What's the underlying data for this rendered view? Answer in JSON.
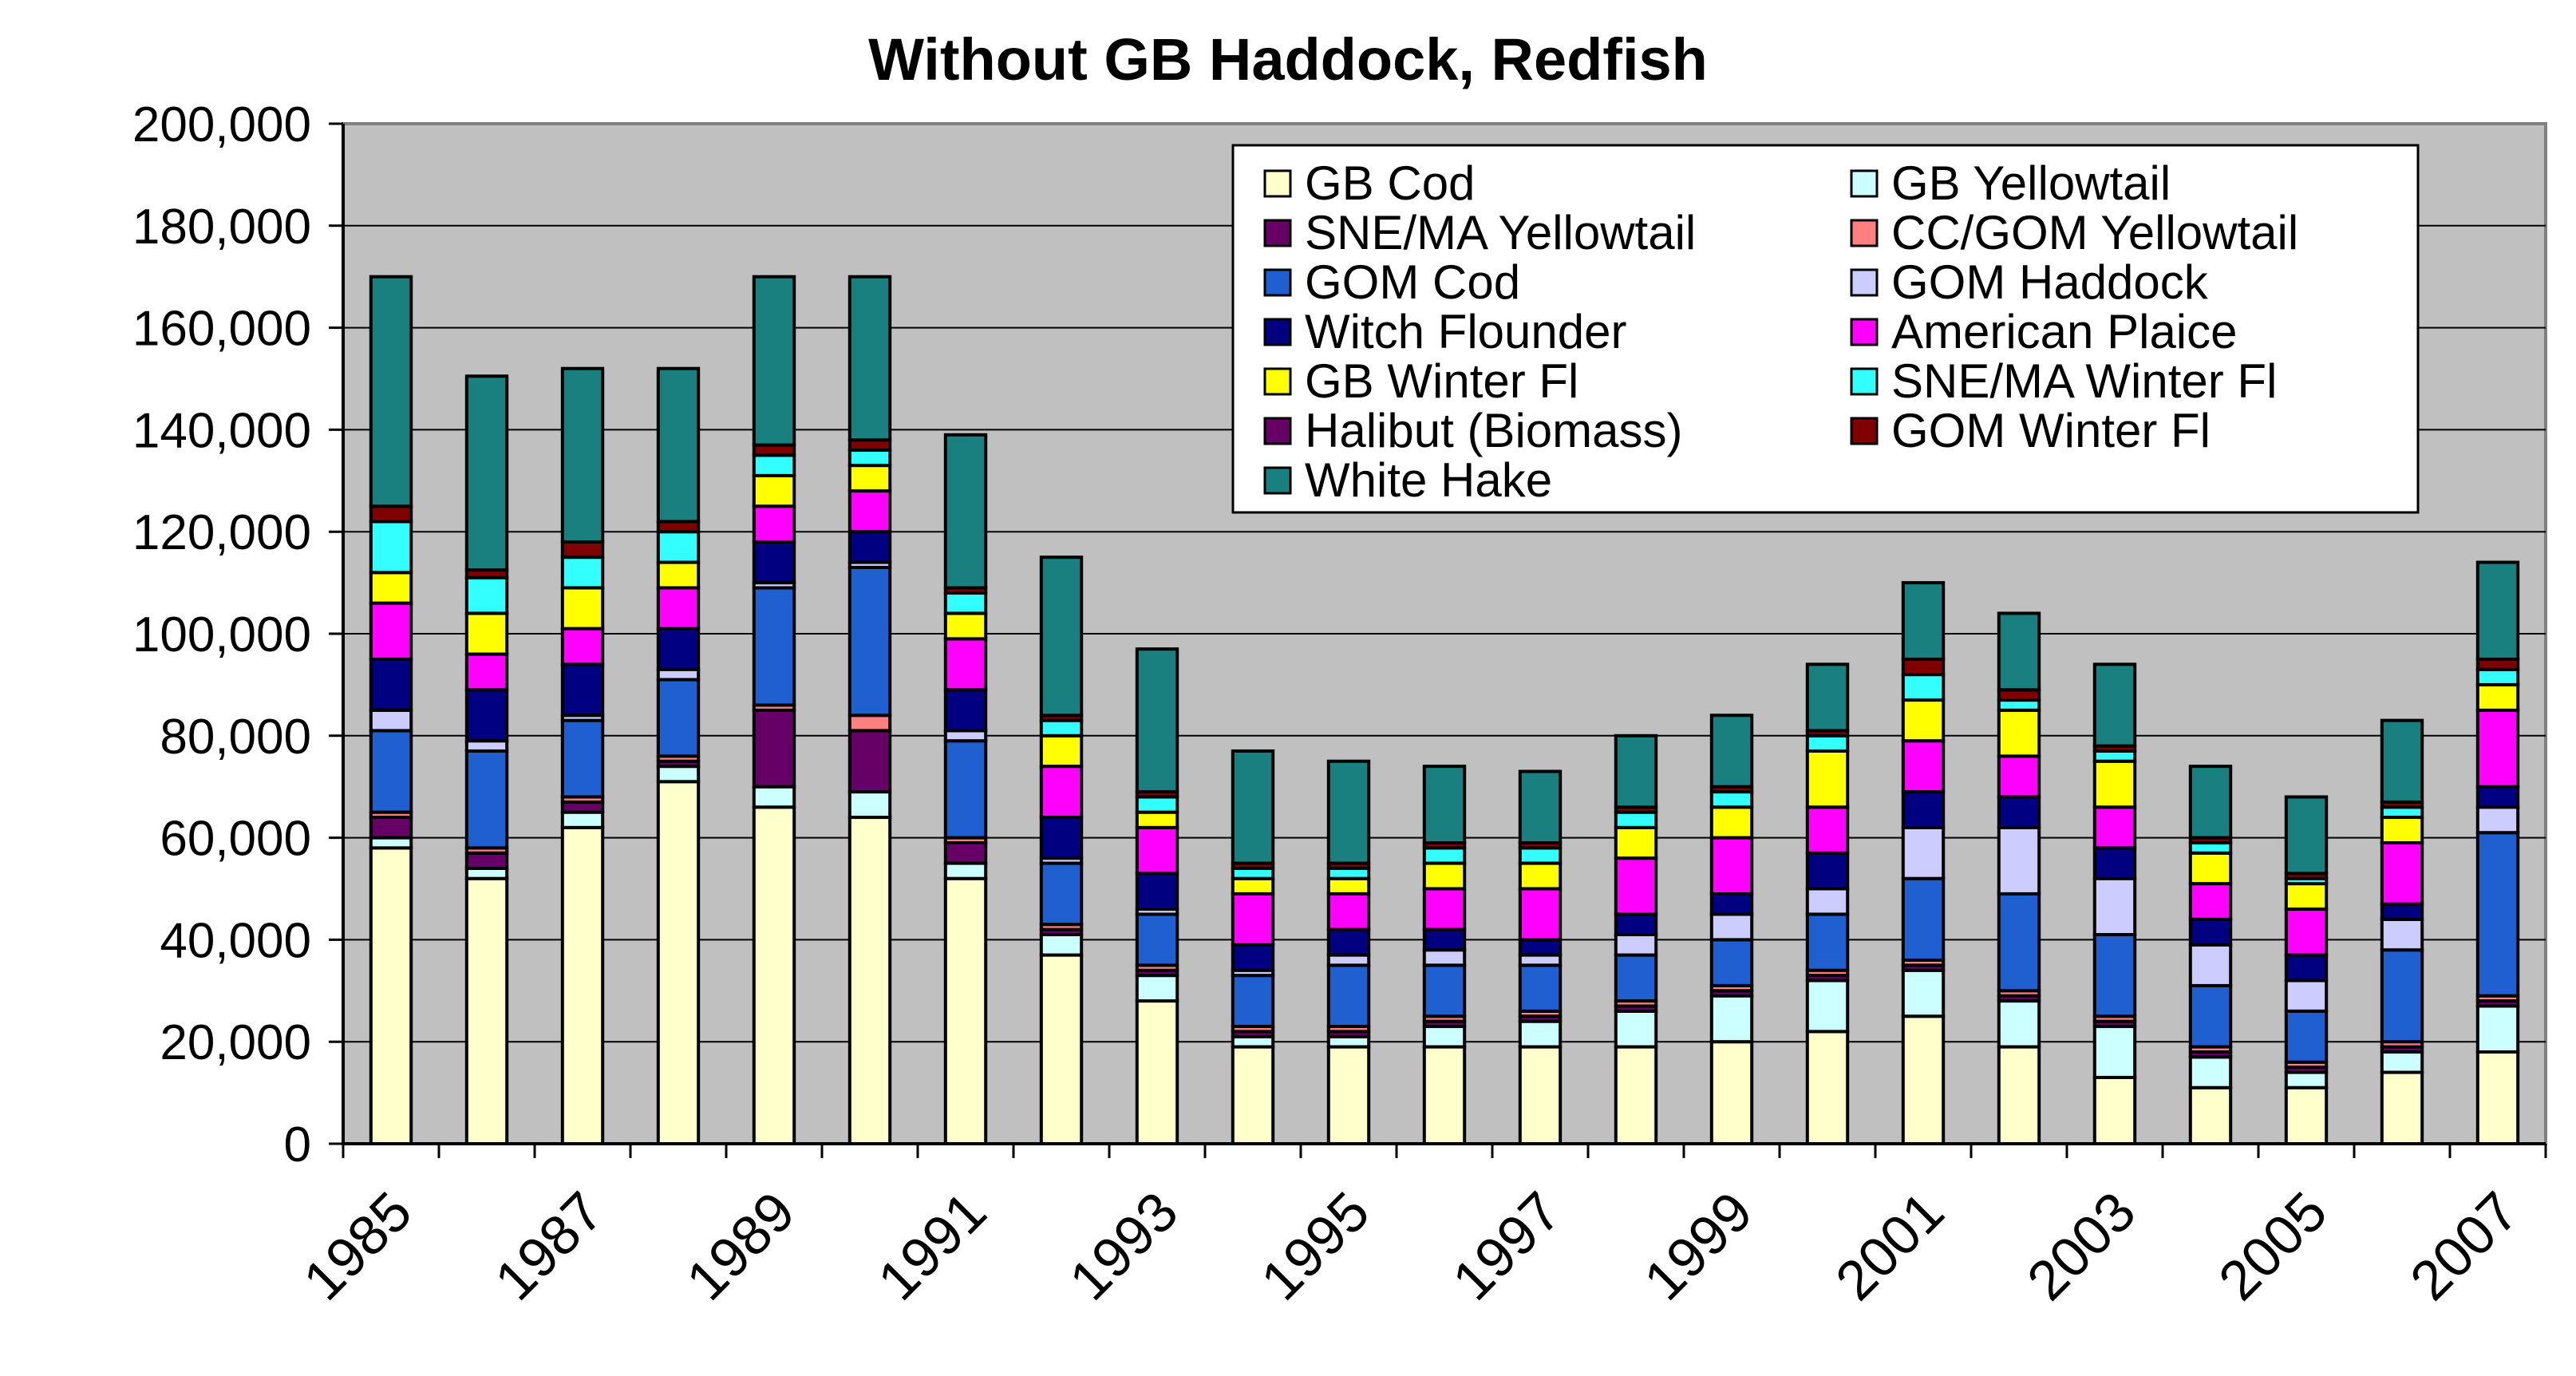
{
  "chart_data": {
    "type": "bar",
    "stacked": true,
    "title": "Without GB Haddock, Redfish",
    "xlabel": "",
    "ylabel": "",
    "ylim": [
      0,
      200000
    ],
    "yticks": [
      "0",
      "20,000",
      "40,000",
      "60,000",
      "80,000",
      "100,000",
      "120,000",
      "140,000",
      "160,000",
      "180,000",
      "200,000"
    ],
    "categories": [
      "1985",
      "1986",
      "1987",
      "1988",
      "1989",
      "1990",
      "1991",
      "1992",
      "1993",
      "1994",
      "1995",
      "1996",
      "1997",
      "1998",
      "1999",
      "2000",
      "2001",
      "2002",
      "2003",
      "2004",
      "2005",
      "2006",
      "2007"
    ],
    "xtick_labels": [
      "1985",
      "",
      "1987",
      "",
      "1989",
      "",
      "1991",
      "",
      "1993",
      "",
      "1995",
      "",
      "1997",
      "",
      "1999",
      "",
      "2001",
      "",
      "2003",
      "",
      "2005",
      "",
      "2007"
    ],
    "plot_background": "#c0c0c0",
    "grid": "horizontal",
    "legend_position": "top-right",
    "series": [
      {
        "name": "GB Cod",
        "color": "#ffffcc",
        "values": [
          58000,
          52000,
          62000,
          71000,
          66000,
          64000,
          52000,
          37000,
          28000,
          19000,
          19000,
          19000,
          19000,
          19000,
          20000,
          22000,
          25000,
          19000,
          13000,
          11000,
          11000,
          14000,
          18000
        ]
      },
      {
        "name": "GB Yellowtail",
        "color": "#ccffff",
        "values": [
          2000,
          2000,
          3000,
          3000,
          4000,
          5000,
          3000,
          4000,
          5000,
          2000,
          2000,
          4000,
          5000,
          7000,
          9000,
          10000,
          9000,
          9000,
          10000,
          6000,
          3000,
          4000,
          9000
        ]
      },
      {
        "name": "SNE/MA Yellowtail",
        "color": "#660066",
        "values": [
          4000,
          3000,
          2000,
          1000,
          15000,
          12000,
          4000,
          1000,
          1000,
          1000,
          1000,
          1000,
          1000,
          1000,
          1000,
          1000,
          1000,
          1000,
          1000,
          1000,
          1000,
          1000,
          1000
        ]
      },
      {
        "name": "CC/GOM Yellowtail",
        "color": "#ff8080",
        "values": [
          1000,
          1000,
          1000,
          1000,
          1000,
          3000,
          1000,
          1000,
          1000,
          1000,
          1000,
          1000,
          1000,
          1000,
          1000,
          1000,
          1000,
          1000,
          1000,
          1000,
          1000,
          1000,
          1000
        ]
      },
      {
        "name": "GOM Cod",
        "color": "#1f5fcf",
        "values": [
          16000,
          19000,
          15000,
          15000,
          23000,
          29000,
          19000,
          12000,
          10000,
          10000,
          12000,
          10000,
          9000,
          9000,
          9000,
          11000,
          16000,
          19000,
          16000,
          12000,
          10000,
          18000,
          32000
        ]
      },
      {
        "name": "GOM Haddock",
        "color": "#ccccff",
        "values": [
          4000,
          2000,
          1000,
          2000,
          1000,
          1000,
          2000,
          1000,
          1000,
          1000,
          2000,
          3000,
          2000,
          4000,
          5000,
          5000,
          10000,
          13000,
          11000,
          8000,
          6000,
          6000,
          5000
        ]
      },
      {
        "name": "Witch Flounder",
        "color": "#000080",
        "values": [
          10000,
          10000,
          10000,
          8000,
          8000,
          6000,
          8000,
          8000,
          7000,
          5000,
          5000,
          4000,
          3000,
          4000,
          4000,
          7000,
          7000,
          6000,
          6000,
          5000,
          5000,
          3000,
          4000
        ]
      },
      {
        "name": "American Plaice",
        "color": "#ff00ff",
        "values": [
          11000,
          7000,
          7000,
          8000,
          7000,
          8000,
          10000,
          10000,
          9000,
          10000,
          7000,
          8000,
          10000,
          11000,
          11000,
          9000,
          10000,
          8000,
          8000,
          7000,
          9000,
          12000,
          15000
        ]
      },
      {
        "name": "GB Winter Fl",
        "color": "#ffff00",
        "values": [
          6000,
          8000,
          8000,
          5000,
          6000,
          5000,
          5000,
          6000,
          3000,
          3000,
          3000,
          5000,
          5000,
          6000,
          6000,
          11000,
          8000,
          9000,
          9000,
          6000,
          5000,
          5000,
          5000
        ]
      },
      {
        "name": "SNE/MA Winter Fl",
        "color": "#33ffff",
        "values": [
          10000,
          7000,
          6000,
          6000,
          4000,
          3000,
          4000,
          3000,
          3000,
          2000,
          2000,
          3000,
          3000,
          3000,
          3000,
          3000,
          5000,
          2000,
          2000,
          2000,
          1000,
          2000,
          3000
        ]
      },
      {
        "name": "Halibut (Biomass)",
        "color": "#660066",
        "values": [
          0,
          0,
          0,
          0,
          0,
          0,
          0,
          0,
          0,
          0,
          0,
          0,
          0,
          0,
          0,
          0,
          0,
          0,
          0,
          0,
          0,
          0,
          0
        ]
      },
      {
        "name": "GOM Winter Fl",
        "color": "#800000",
        "values": [
          3000,
          1500,
          3000,
          2000,
          2000,
          2000,
          1000,
          1000,
          1000,
          1000,
          1000,
          1000,
          1000,
          1000,
          1000,
          1000,
          3000,
          2000,
          1000,
          1000,
          1000,
          1000,
          2000
        ]
      },
      {
        "name": "White Hake",
        "color": "#1a7f7f",
        "values": [
          45000,
          38000,
          34000,
          30000,
          33000,
          32000,
          30000,
          31000,
          28000,
          22000,
          20000,
          15000,
          14000,
          14000,
          14000,
          13000,
          15000,
          15000,
          16000,
          14000,
          15000,
          16000,
          19000
        ]
      }
    ]
  }
}
